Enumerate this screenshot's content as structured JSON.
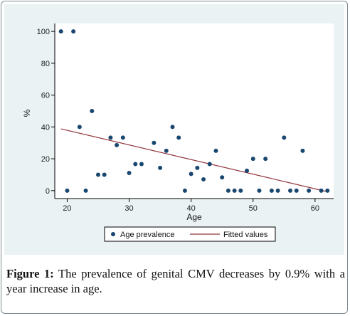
{
  "figure": {
    "label": "Figure 1:",
    "text": "The prevalence of genital CMV decreases by 0.9% with a year increase in age."
  },
  "colors": {
    "plot_background": "#eaf2f3",
    "marker": "#1a476f",
    "fit_line": "#90353b",
    "axis": "#000000"
  },
  "chart_data": {
    "type": "scatter",
    "xlabel": "Age",
    "ylabel": "%",
    "xlim": [
      18,
      63
    ],
    "ylim": [
      -5,
      105
    ],
    "xticks": [
      20,
      30,
      40,
      50,
      60
    ],
    "yticks": [
      0,
      20,
      40,
      60,
      80,
      100
    ],
    "grid": false,
    "legend_position": "bottom",
    "series": [
      {
        "name": "Age prevalence",
        "kind": "points",
        "marker": "circle",
        "x": [
          19,
          20,
          21,
          22,
          23,
          24,
          25,
          26,
          27,
          28,
          29,
          30,
          31,
          32,
          34,
          35,
          36,
          37,
          38,
          39,
          40,
          41,
          42,
          43,
          44,
          45,
          46,
          47,
          48,
          49,
          50,
          51,
          52,
          53,
          54,
          55,
          56,
          57,
          58,
          59,
          61,
          62
        ],
        "y": [
          100,
          0,
          100,
          40,
          0,
          50,
          10,
          10,
          33.3,
          28.6,
          33.3,
          11.1,
          16.7,
          16.7,
          30,
          14.3,
          25,
          40,
          33.3,
          0,
          10.5,
          14.3,
          7.1,
          16.7,
          25,
          8.3,
          0,
          0,
          0,
          12.5,
          20,
          0,
          20,
          0,
          0,
          33.3,
          0,
          0,
          25,
          0,
          0,
          0
        ]
      },
      {
        "name": "Fitted values",
        "kind": "line",
        "x": [
          19,
          62
        ],
        "y": [
          38.8,
          -0.7
        ]
      }
    ]
  }
}
